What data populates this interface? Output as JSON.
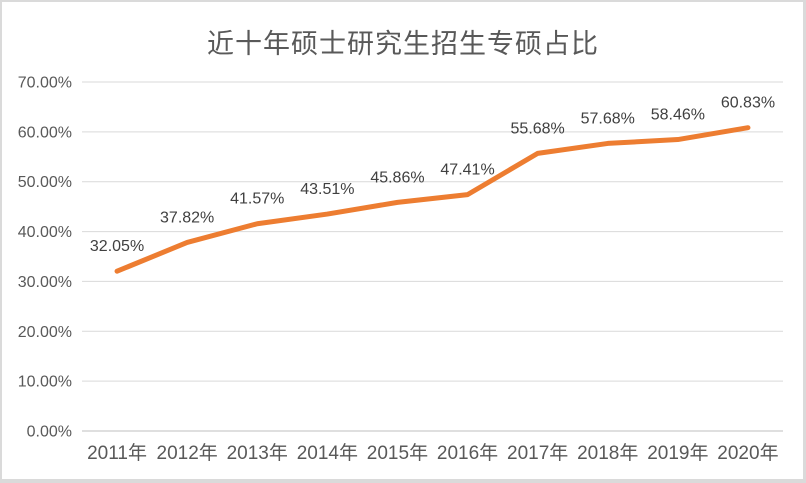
{
  "chart_data": {
    "type": "line",
    "title": "近十年硕士研究生招生专硕占比",
    "categories": [
      "2011年",
      "2012年",
      "2013年",
      "2014年",
      "2015年",
      "2016年",
      "2017年",
      "2018年",
      "2019年",
      "2020年"
    ],
    "series": [
      {
        "values": [
          32.05,
          37.82,
          41.57,
          43.51,
          45.86,
          47.41,
          55.68,
          57.68,
          58.46,
          60.83
        ],
        "labels": [
          "32.05%",
          "37.82%",
          "41.57%",
          "43.51%",
          "45.86%",
          "47.41%",
          "55.68%",
          "57.68%",
          "58.46%",
          "60.83%"
        ],
        "color": "#ED7D31"
      }
    ],
    "xlabel": "",
    "ylabel": "",
    "ylim": [
      0,
      70
    ],
    "yticks": [
      "0.00%",
      "10.00%",
      "20.00%",
      "30.00%",
      "40.00%",
      "50.00%",
      "60.00%",
      "70.00%"
    ],
    "grid": true,
    "legend_position": "none"
  },
  "colors": {
    "line": "#ED7D31",
    "gridline": "#D9D9D9",
    "axis_line": "#BFBFBF",
    "tick_text": "#595959",
    "data_label_text": "#404040",
    "title_text": "#595959",
    "background": "#FFFFFF",
    "frame_border": "#DADADA"
  }
}
